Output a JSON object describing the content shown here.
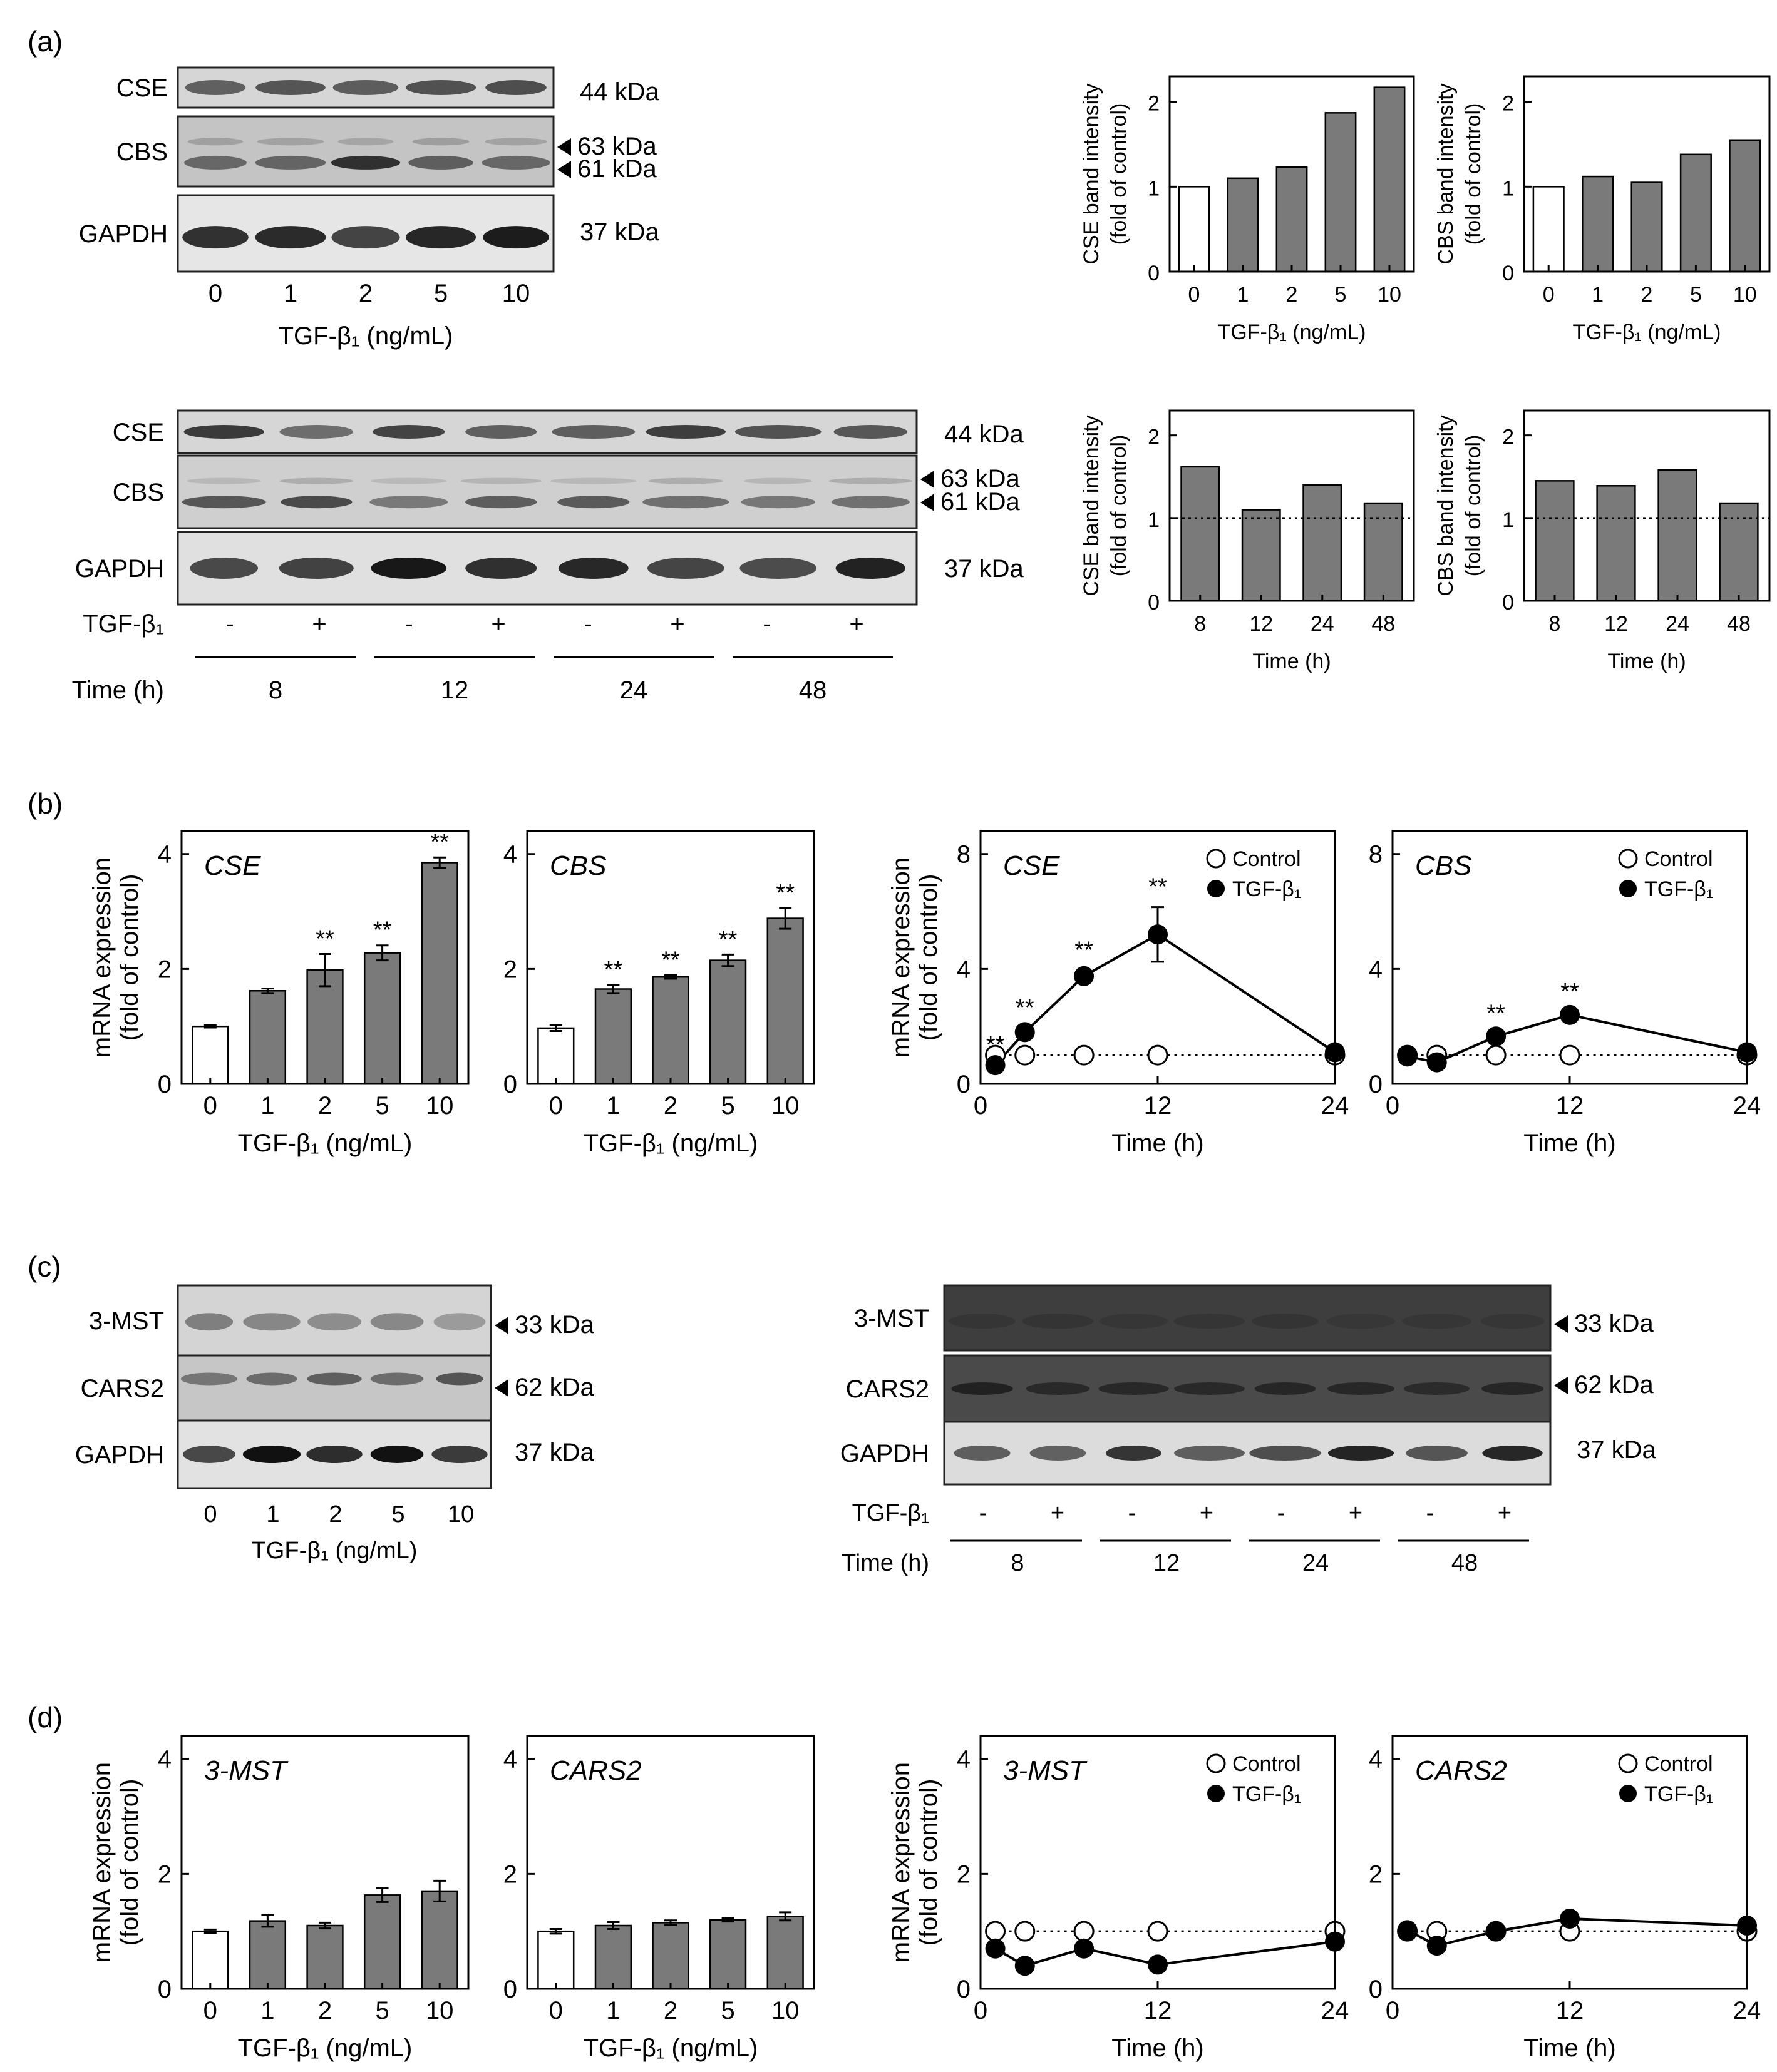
{
  "panel_labels": {
    "a": "(a)",
    "b": "(b)",
    "c": "(c)",
    "d": "(d)"
  },
  "common": {
    "tgf_dose_label": "TGF-β₁ (ng/mL)",
    "tgf_dose_label_spaced": "TGF-β₁  (ng/mL)",
    "tgf_label": "TGF-β₁",
    "time_label": "Time (h)",
    "time_label_spaced": "Time  (h)",
    "doses": [
      "0",
      "1",
      "2",
      "5",
      "10"
    ],
    "times": [
      "8",
      "12",
      "24",
      "48"
    ],
    "signs": [
      "-",
      "+",
      "-",
      "+",
      "-",
      "+",
      "-",
      "+"
    ],
    "sig_mark": "**",
    "legend": {
      "control": "Control",
      "tgf": "TGF-β₁"
    },
    "mrna_ylabel": [
      "mRNA expression",
      "(fold of control)"
    ]
  },
  "blots": {
    "a_dose": {
      "rows": [
        "CSE",
        "CBS",
        "GAPDH"
      ],
      "sizes": [
        "44 kDa",
        "63 kDa",
        "61 kDa",
        "37 kDa"
      ]
    },
    "a_time": {
      "rows": [
        "CSE",
        "CBS",
        "GAPDH"
      ],
      "sizes": [
        "44 kDa",
        "63 kDa",
        "61 kDa",
        "37 kDa"
      ]
    },
    "c_dose": {
      "rows": [
        "3-MST",
        "CARS2",
        "GAPDH"
      ],
      "sizes": [
        "33 kDa",
        "62 kDa",
        "37 kDa"
      ]
    },
    "c_time": {
      "rows": [
        "3-MST",
        "CARS2",
        "GAPDH"
      ],
      "sizes": [
        "33 kDa",
        "62 kDa",
        "37 kDa"
      ]
    }
  },
  "chart_data": [
    {
      "id": "a-cse-dose",
      "type": "bar",
      "categories": [
        "0",
        "1",
        "2",
        "5",
        "10"
      ],
      "values": [
        1.0,
        1.1,
        1.23,
        1.87,
        2.17
      ],
      "ylabel": [
        "CSE band intensity",
        "(fold of control)"
      ],
      "xlabel": "TGF-β₁ (ng/mL)",
      "ylim": [
        0,
        2.3
      ],
      "yticks": [
        0,
        1,
        2
      ]
    },
    {
      "id": "a-cbs-dose",
      "type": "bar",
      "categories": [
        "0",
        "1",
        "2",
        "5",
        "10"
      ],
      "values": [
        1.0,
        1.12,
        1.05,
        1.38,
        1.55
      ],
      "ylabel": [
        "CBS band intensity",
        "(fold of control)"
      ],
      "xlabel": "TGF-β₁ (ng/mL)",
      "ylim": [
        0,
        2.3
      ],
      "yticks": [
        0,
        1,
        2
      ]
    },
    {
      "id": "a-cse-time",
      "type": "bar",
      "categories": [
        "8",
        "12",
        "24",
        "48"
      ],
      "values": [
        1.62,
        1.1,
        1.4,
        1.18
      ],
      "ylabel": [
        "CSE band intensity",
        "(fold of control)"
      ],
      "xlabel": "Time (h)",
      "ylim": [
        0,
        2.3
      ],
      "yticks": [
        0,
        1,
        2
      ],
      "reference_line": 1
    },
    {
      "id": "a-cbs-time",
      "type": "bar",
      "categories": [
        "8",
        "12",
        "24",
        "48"
      ],
      "values": [
        1.45,
        1.39,
        1.58,
        1.18
      ],
      "ylabel": [
        "CBS band intensity",
        "(fold of control)"
      ],
      "xlabel": "Time (h)",
      "ylim": [
        0,
        2.3
      ],
      "yticks": [
        0,
        1,
        2
      ],
      "reference_line": 1
    },
    {
      "id": "b-cse-dose",
      "type": "bar",
      "title": "CSE",
      "categories": [
        "0",
        "1",
        "2",
        "5",
        "10"
      ],
      "values": [
        1.0,
        1.62,
        1.98,
        2.28,
        3.85
      ],
      "errors": [
        0.02,
        0.04,
        0.28,
        0.13,
        0.09
      ],
      "significance": [
        "",
        "",
        "**",
        "**",
        "**"
      ],
      "ylabel": [
        "mRNA expression",
        "(fold of control)"
      ],
      "xlabel": "TGF-β₁  (ng/mL)",
      "ylim": [
        0,
        4.4
      ],
      "yticks": [
        0,
        2,
        4
      ]
    },
    {
      "id": "b-cbs-dose",
      "type": "bar",
      "title": "CBS",
      "categories": [
        "0",
        "1",
        "2",
        "5",
        "10"
      ],
      "values": [
        0.97,
        1.65,
        1.86,
        2.15,
        2.88
      ],
      "errors": [
        0.05,
        0.07,
        0.03,
        0.1,
        0.18
      ],
      "significance": [
        "",
        "**",
        "**",
        "**",
        "**"
      ],
      "xlabel": "TGF-β₁  (ng/mL)",
      "ylim": [
        0,
        4.4
      ],
      "yticks": [
        0,
        2,
        4
      ]
    },
    {
      "id": "b-cse-time",
      "type": "line",
      "title": "CSE",
      "x": [
        1,
        3,
        7,
        12,
        24
      ],
      "series": [
        {
          "name": "Control",
          "values": [
            1,
            1,
            1,
            1,
            1
          ]
        },
        {
          "name": "TGF-β₁",
          "values": [
            0.65,
            1.8,
            3.75,
            5.2,
            1.1
          ],
          "errors": [
            0,
            0.15,
            0.2,
            0.95,
            0.1
          ]
        }
      ],
      "significance": [
        "**",
        "**",
        "**",
        "**",
        ""
      ],
      "ylabel": [
        "mRNA expression",
        "(fold of control)"
      ],
      "xlabel": "Time  (h)",
      "xlim": [
        0,
        24
      ],
      "xticks": [
        0,
        12,
        24
      ],
      "ylim": [
        0,
        8.8
      ],
      "yticks": [
        0,
        4,
        8
      ]
    },
    {
      "id": "b-cbs-time",
      "type": "line",
      "title": "CBS",
      "x": [
        1,
        3,
        7,
        12,
        24
      ],
      "series": [
        {
          "name": "Control",
          "values": [
            1,
            1,
            1,
            1,
            1
          ]
        },
        {
          "name": "TGF-β₁",
          "values": [
            0.95,
            0.75,
            1.65,
            2.4,
            1.1
          ],
          "errors": [
            0,
            0,
            0.1,
            0.1,
            0
          ]
        }
      ],
      "significance": [
        "",
        "",
        "**",
        "**",
        ""
      ],
      "xlabel": "Time  (h)",
      "xlim": [
        0,
        24
      ],
      "xticks": [
        0,
        12,
        24
      ],
      "ylim": [
        0,
        8.8
      ],
      "yticks": [
        0,
        4,
        8
      ]
    },
    {
      "id": "d-3mst-dose",
      "type": "bar",
      "title": "3-MST",
      "categories": [
        "0",
        "1",
        "2",
        "5",
        "10"
      ],
      "values": [
        1.0,
        1.18,
        1.1,
        1.63,
        1.7
      ],
      "errors": [
        0.03,
        0.1,
        0.05,
        0.12,
        0.18
      ],
      "significance": [
        "",
        "",
        "",
        "",
        ""
      ],
      "ylabel": [
        "mRNA expression",
        "(fold of control)"
      ],
      "xlabel": "TGF-β₁  (ng/mL)",
      "ylim": [
        0,
        4.4
      ],
      "yticks": [
        0,
        2,
        4
      ]
    },
    {
      "id": "d-cars2-dose",
      "type": "bar",
      "title": "CARS2",
      "categories": [
        "0",
        "1",
        "2",
        "5",
        "10"
      ],
      "values": [
        1.0,
        1.1,
        1.15,
        1.2,
        1.26
      ],
      "errors": [
        0.04,
        0.06,
        0.04,
        0.03,
        0.07
      ],
      "significance": [
        "",
        "",
        "",
        "",
        ""
      ],
      "xlabel": "TGF-β₁  (ng/mL)",
      "ylim": [
        0,
        4.4
      ],
      "yticks": [
        0,
        2,
        4
      ]
    },
    {
      "id": "d-3mst-time",
      "type": "line",
      "title": "3-MST",
      "x": [
        1,
        3,
        7,
        12,
        24
      ],
      "series": [
        {
          "name": "Control",
          "values": [
            1,
            1,
            1,
            1,
            1
          ]
        },
        {
          "name": "TGF-β₁",
          "values": [
            0.7,
            0.4,
            0.7,
            0.42,
            0.82
          ]
        }
      ],
      "ylabel": [
        "mRNA expression",
        "(fold of control)"
      ],
      "xlabel": "Time  (h)",
      "xlim": [
        0,
        24
      ],
      "xticks": [
        0,
        12,
        24
      ],
      "ylim": [
        0,
        4.4
      ],
      "yticks": [
        0,
        2,
        4
      ]
    },
    {
      "id": "d-cars2-time",
      "type": "line",
      "title": "CARS2",
      "x": [
        1,
        3,
        7,
        12,
        24
      ],
      "series": [
        {
          "name": "Control",
          "values": [
            1,
            1,
            1,
            1,
            1
          ]
        },
        {
          "name": "TGF-β₁",
          "values": [
            1.02,
            0.75,
            1.0,
            1.22,
            1.1
          ]
        }
      ],
      "xlabel": "Time  (h)",
      "xlim": [
        0,
        24
      ],
      "xticks": [
        0,
        12,
        24
      ],
      "ylim": [
        0,
        4.4
      ],
      "yticks": [
        0,
        2,
        4
      ]
    }
  ]
}
